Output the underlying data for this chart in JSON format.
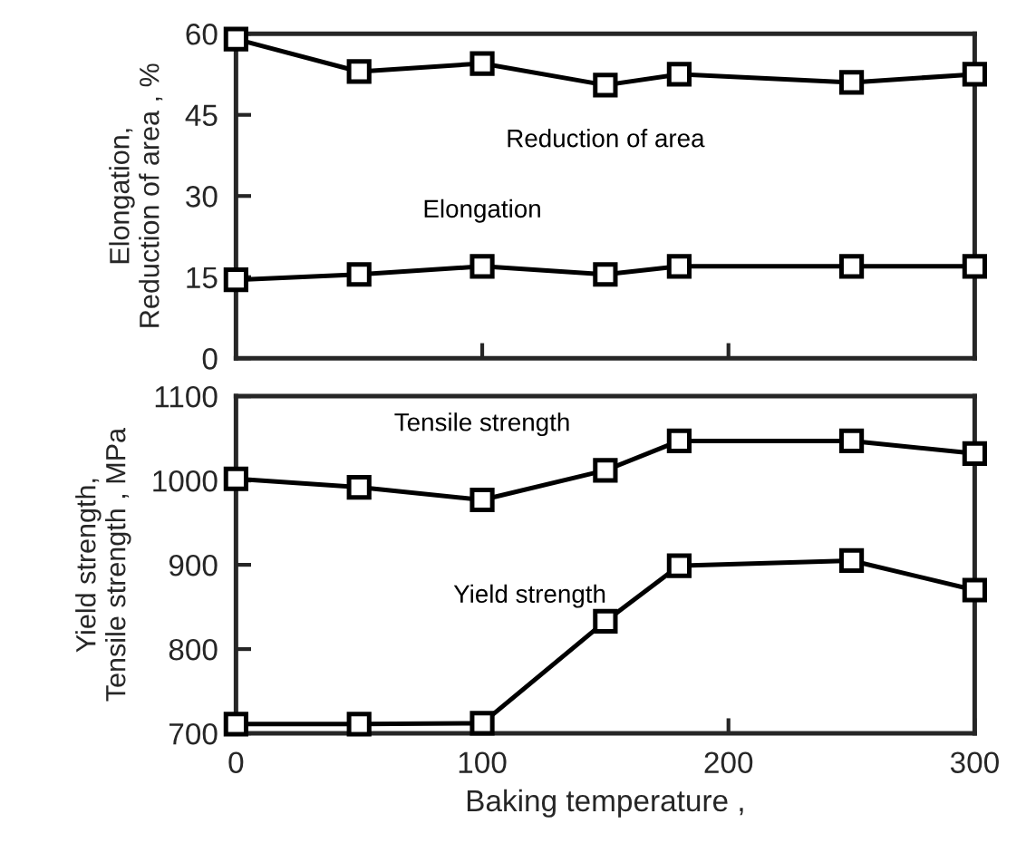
{
  "chart_data": [
    {
      "type": "line",
      "ylabel": "Elongation,\nReduction of area , %",
      "x": [
        0,
        50,
        100,
        150,
        180,
        250,
        300
      ],
      "xlim": [
        0,
        300
      ],
      "xticks": [
        {
          "value": 100,
          "label": null
        },
        {
          "value": 200,
          "label": null
        }
      ],
      "ylim": [
        0,
        60
      ],
      "yticks": [
        0,
        15,
        30,
        45,
        60
      ],
      "tick_labels": "y",
      "marker": "square",
      "line_style": "solid",
      "grid": false,
      "legend": false,
      "series": [
        {
          "name": "Reduction of area",
          "color": "#000000",
          "values": [
            59,
            53,
            54.5,
            50.5,
            52.5,
            51,
            52.5
          ]
        },
        {
          "name": "Elongation",
          "color": "#000000",
          "values": [
            14.5,
            15.5,
            17,
            15.5,
            17,
            17,
            17
          ]
        }
      ]
    },
    {
      "type": "line",
      "ylabel": "Yield strength,\nTensile strength , MPa",
      "xlabel": "Baking temperature ,",
      "x": [
        0,
        50,
        100,
        150,
        180,
        250,
        300
      ],
      "xlim": [
        0,
        300
      ],
      "xticks": [
        0,
        100,
        200,
        300
      ],
      "ylim": [
        700,
        1100
      ],
      "yticks": [
        700,
        800,
        900,
        1000,
        1100
      ],
      "marker": "square",
      "line_style": "solid",
      "grid": false,
      "legend": false,
      "series": [
        {
          "name": "Tensile strength",
          "color": "#000000",
          "values": [
            1002,
            992,
            977,
            1012,
            1047,
            1047,
            1032
          ]
        },
        {
          "name": "Yield strength",
          "color": "#000000",
          "values": [
            711,
            711,
            712,
            833,
            899,
            905,
            870
          ]
        }
      ]
    }
  ]
}
